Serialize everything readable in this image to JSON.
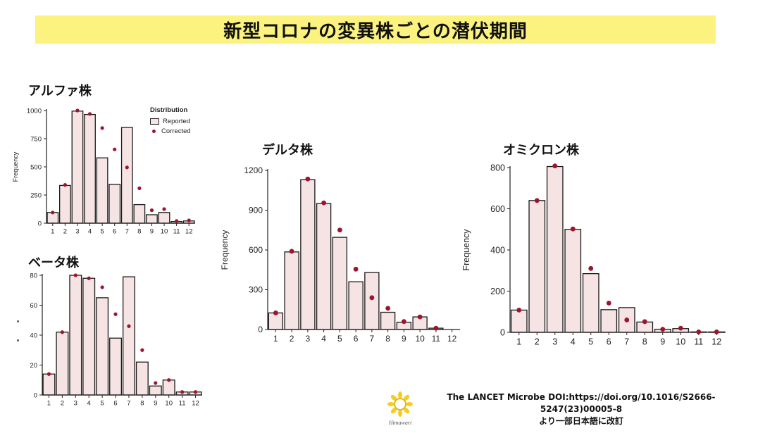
{
  "header": {
    "title": "新型コロナの変異株ごとの潜伏期間"
  },
  "legend": {
    "title": "Distribution",
    "reported": "Reported",
    "corrected": "Corrected"
  },
  "source": {
    "line1": "The LANCET Microbe DOI:https://doi.org/10.1016/S2666-5247(23)00005-8",
    "line2": "より一部日本語に改訂",
    "logo_text": "Himawari"
  },
  "colors": {
    "banner": "#fbf27f",
    "bar_fill": "#f6e3e3",
    "dot": "#9c1530"
  },
  "chart_data": [
    {
      "id": "alpha",
      "type": "bar",
      "title": "アルファ株",
      "xlabel": "",
      "ylabel": "Frequency",
      "categories": [
        "1",
        "2",
        "3",
        "4",
        "5",
        "6",
        "7",
        "8",
        "9",
        "10",
        "11",
        "12"
      ],
      "ylim": [
        0,
        1000
      ],
      "yticks": [
        0,
        250,
        500,
        750,
        1000
      ],
      "series": [
        {
          "name": "Reported",
          "kind": "bar",
          "values": [
            95,
            335,
            995,
            965,
            580,
            345,
            850,
            165,
            75,
            95,
            15,
            20
          ]
        },
        {
          "name": "Corrected",
          "kind": "dot",
          "values": [
            95,
            340,
            1000,
            970,
            845,
            655,
            495,
            310,
            115,
            125,
            20,
            25
          ]
        }
      ]
    },
    {
      "id": "beta",
      "type": "bar",
      "title": "ベータ株",
      "xlabel": "",
      "ylabel": "",
      "categories": [
        "1",
        "2",
        "3",
        "4",
        "5",
        "6",
        "7",
        "8",
        "9",
        "10",
        "11",
        "12"
      ],
      "ylim": [
        0,
        80
      ],
      "yticks": [
        0,
        20,
        40,
        60,
        80
      ],
      "series": [
        {
          "name": "Reported",
          "kind": "bar",
          "values": [
            14,
            42,
            80,
            78,
            65,
            38,
            79,
            22,
            6,
            10,
            2,
            2
          ]
        },
        {
          "name": "Corrected",
          "kind": "dot",
          "values": [
            14,
            42,
            80,
            78,
            72,
            54,
            46,
            30,
            8,
            10,
            2,
            2
          ]
        }
      ]
    },
    {
      "id": "delta",
      "type": "bar",
      "title": "デルタ株",
      "xlabel": "",
      "ylabel": "Frequency",
      "categories": [
        "1",
        "2",
        "3",
        "4",
        "5",
        "6",
        "7",
        "8",
        "9",
        "10",
        "11",
        "12"
      ],
      "ylim": [
        0,
        1200
      ],
      "yticks": [
        0,
        300,
        600,
        900,
        1200
      ],
      "series": [
        {
          "name": "Reported",
          "kind": "bar",
          "values": [
            125,
            585,
            1130,
            950,
            695,
            360,
            430,
            130,
            55,
            95,
            10,
            0
          ]
        },
        {
          "name": "Corrected",
          "kind": "dot",
          "values": [
            125,
            590,
            1135,
            955,
            750,
            455,
            240,
            160,
            60,
            95,
            10,
            0
          ]
        }
      ]
    },
    {
      "id": "omicron",
      "type": "bar",
      "title": "オミクロン株",
      "xlabel": "",
      "ylabel": "Frequency",
      "categories": [
        "1",
        "2",
        "3",
        "4",
        "5",
        "6",
        "7",
        "8",
        "9",
        "10",
        "11",
        "12"
      ],
      "ylim": [
        0,
        800
      ],
      "yticks": [
        0,
        200,
        400,
        600,
        800
      ],
      "series": [
        {
          "name": "Reported",
          "kind": "bar",
          "values": [
            108,
            640,
            805,
            500,
            285,
            110,
            120,
            50,
            15,
            18,
            2,
            2
          ]
        },
        {
          "name": "Corrected",
          "kind": "dot",
          "values": [
            108,
            640,
            808,
            502,
            310,
            142,
            60,
            52,
            15,
            20,
            2,
            2
          ]
        }
      ]
    }
  ]
}
